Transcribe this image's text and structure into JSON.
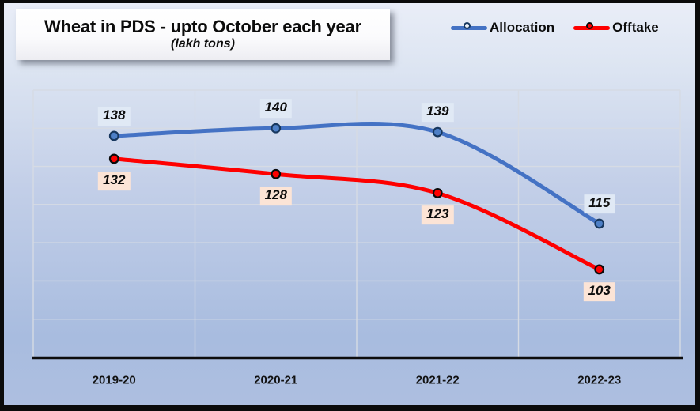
{
  "title": {
    "text": "Wheat in PDS - upto October each year",
    "subtitle": "(lakh tons)"
  },
  "chart_data": {
    "type": "line",
    "title": "Wheat in PDS - upto October each year",
    "subtitle": "(lakh tons)",
    "categories": [
      "2019-20",
      "2020-21",
      "2021-22",
      "2022-23"
    ],
    "series": [
      {
        "name": "Allocation",
        "values": [
          138,
          140,
          139,
          115
        ],
        "color": "#4472c4",
        "marker_fill": "#4d7fc6",
        "marker_stroke": "#17375e",
        "legend_marker_fill": "#edf1f9",
        "label_bg": "#e0e9f5",
        "label_offset": -25
      },
      {
        "name": "Offtake",
        "values": [
          132,
          128,
          123,
          103
        ],
        "color": "#fe0000",
        "marker_fill": "#fe0000",
        "marker_stroke": "#0a0a0a",
        "legend_marker_fill": "#fe0000",
        "label_bg": "#fce4d6",
        "label_offset": 28
      }
    ],
    "xlabel": "",
    "ylabel": "",
    "ylim": [
      80,
      150
    ],
    "grid_step": 10,
    "grid": true,
    "smooth": true,
    "legend_position": "top-right",
    "gridline_color": "#d6dbe4",
    "axis_color": "#0d0d0d"
  }
}
